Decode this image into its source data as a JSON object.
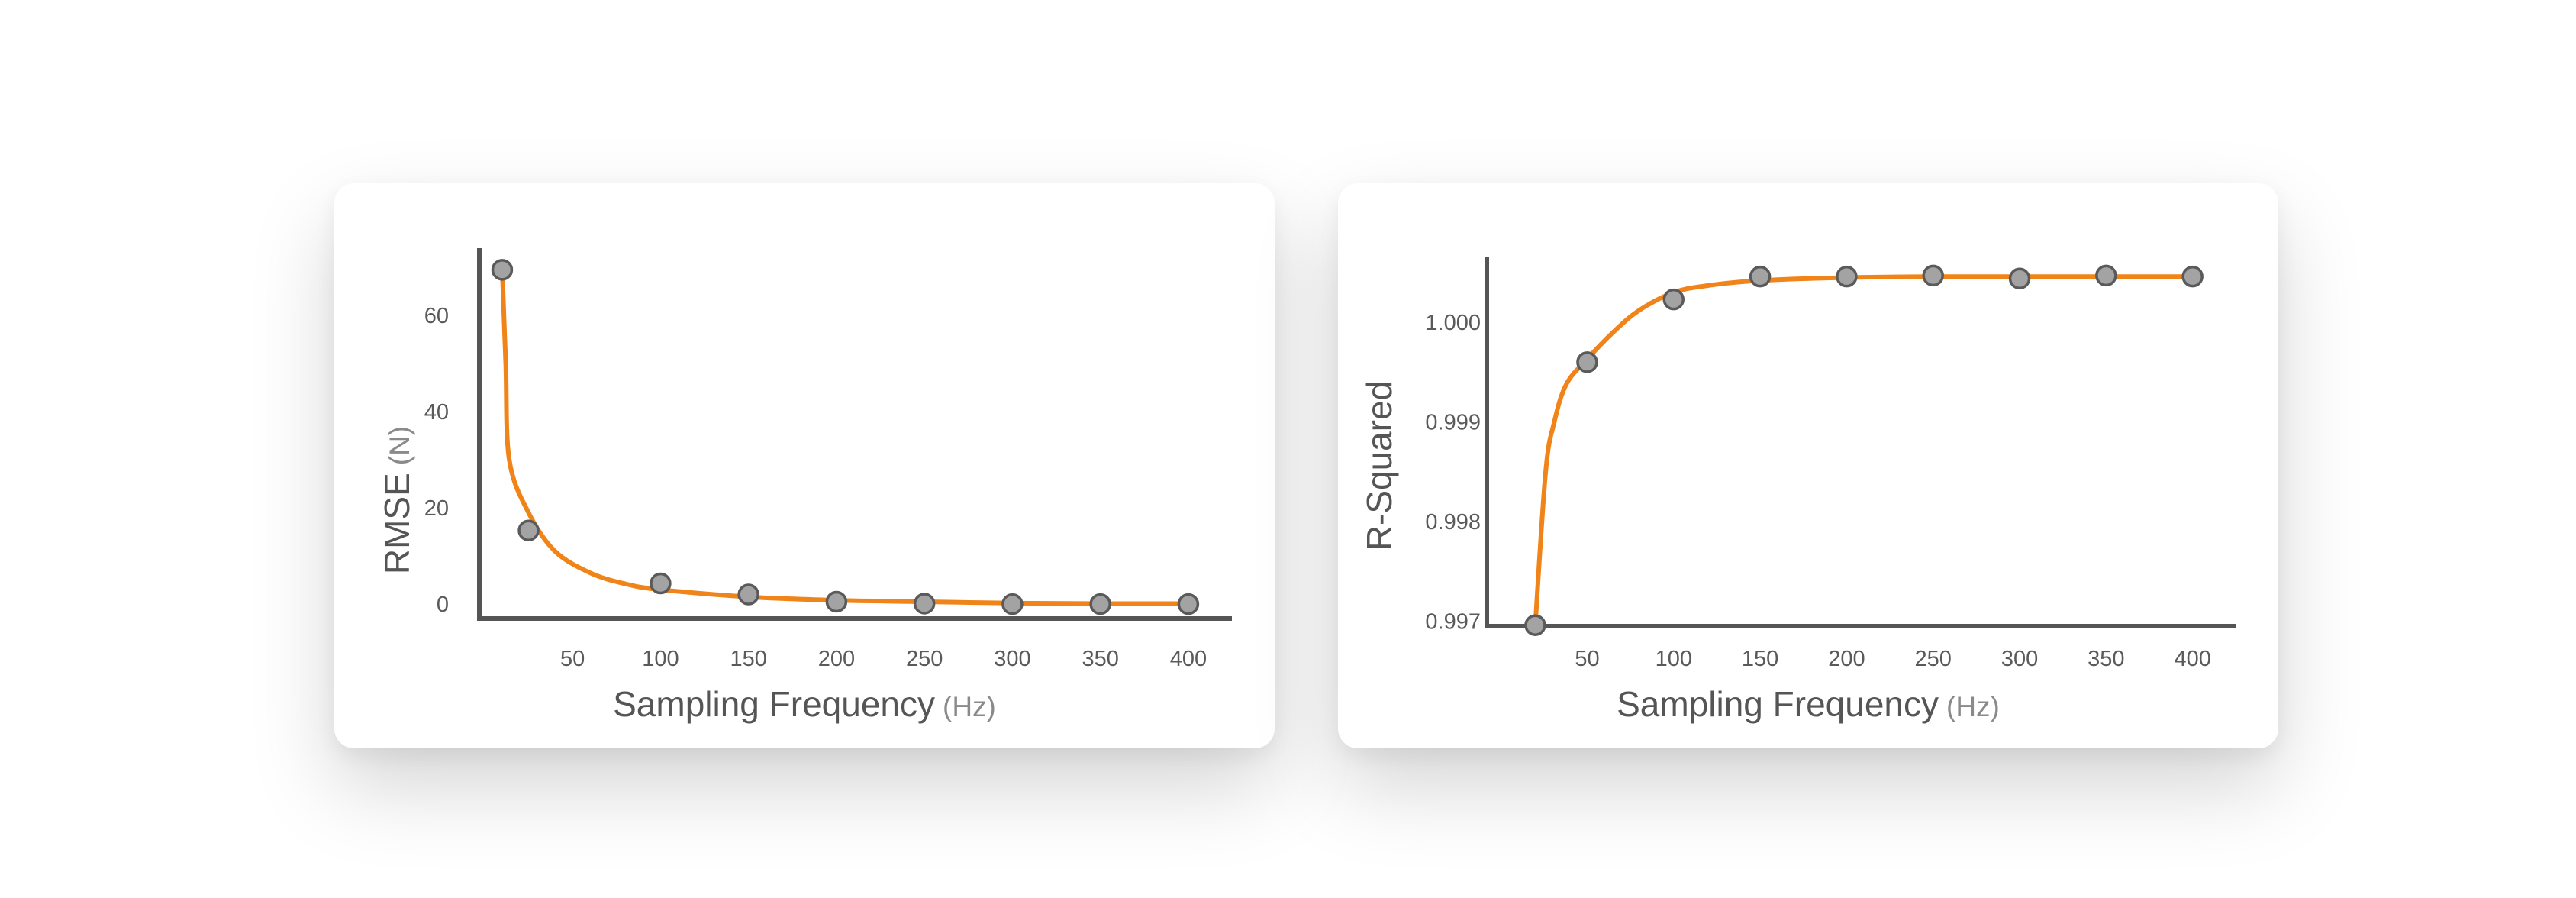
{
  "chart_data": [
    {
      "type": "scatter",
      "ylabel": "RMSE",
      "ylabel_unit": "(N)",
      "xlabel": "Sampling Frequency",
      "xlabel_unit": "(Hz)",
      "xticks": [
        "50",
        "100",
        "150",
        "200",
        "250",
        "300",
        "350",
        "400"
      ],
      "yticks": [
        "0",
        "20",
        "40",
        "60"
      ],
      "xlim": [
        -3,
        420
      ],
      "ylim": [
        -3,
        74
      ],
      "points": [
        {
          "x": 10,
          "y": 69.5
        },
        {
          "x": 25,
          "y": 15.3
        },
        {
          "x": 100,
          "y": 4.3
        },
        {
          "x": 150,
          "y": 2.0
        },
        {
          "x": 200,
          "y": 0.5
        },
        {
          "x": 250,
          "y": 0.1
        },
        {
          "x": 300,
          "y": 0.0
        },
        {
          "x": 350,
          "y": 0.0
        },
        {
          "x": 400,
          "y": 0.0
        }
      ],
      "fit_curve": [
        {
          "x": 10,
          "y": 69.5
        },
        {
          "x": 12,
          "y": 50
        },
        {
          "x": 14,
          "y": 30
        },
        {
          "x": 25,
          "y": 19
        },
        {
          "x": 40,
          "y": 11
        },
        {
          "x": 60,
          "y": 6.5
        },
        {
          "x": 80,
          "y": 4.2
        },
        {
          "x": 100,
          "y": 3.0
        },
        {
          "x": 150,
          "y": 1.5
        },
        {
          "x": 200,
          "y": 0.8
        },
        {
          "x": 250,
          "y": 0.5
        },
        {
          "x": 300,
          "y": 0.2
        },
        {
          "x": 350,
          "y": 0.1
        },
        {
          "x": 400,
          "y": 0.1
        }
      ],
      "grid": false,
      "legend": "none",
      "colors": {
        "curve": "#f08418",
        "marker": "#a3a3a3"
      }
    },
    {
      "type": "scatter",
      "ylabel": "R-Squared",
      "xlabel": "Sampling Frequency",
      "xlabel_unit": "(Hz)",
      "xticks": [
        "50",
        "100",
        "150",
        "200",
        "250",
        "300",
        "350",
        "400"
      ],
      "yticks": [
        "0.997",
        "0.998",
        "0.999",
        "1.000"
      ],
      "xlim": [
        -8,
        420
      ],
      "ylim": [
        0.99695,
        1.00063
      ],
      "points": [
        {
          "x": 20,
          "y": 0.99696
        },
        {
          "x": 50,
          "y": 0.9996
        },
        {
          "x": 100,
          "y": 1.00023
        },
        {
          "x": 150,
          "y": 1.00046
        },
        {
          "x": 200,
          "y": 1.00046
        },
        {
          "x": 250,
          "y": 1.00047
        },
        {
          "x": 300,
          "y": 1.00044
        },
        {
          "x": 350,
          "y": 1.00047
        },
        {
          "x": 400,
          "y": 1.00046
        }
      ],
      "fit_curve": [
        {
          "x": 20,
          "y": 0.99696
        },
        {
          "x": 26,
          "y": 0.9985
        },
        {
          "x": 31,
          "y": 0.999
        },
        {
          "x": 38,
          "y": 0.99938
        },
        {
          "x": 50,
          "y": 0.99963
        },
        {
          "x": 65,
          "y": 0.9999
        },
        {
          "x": 80,
          "y": 1.00012
        },
        {
          "x": 100,
          "y": 1.0003
        },
        {
          "x": 120,
          "y": 1.00037
        },
        {
          "x": 150,
          "y": 1.00042
        },
        {
          "x": 200,
          "y": 1.00045
        },
        {
          "x": 250,
          "y": 1.00046
        },
        {
          "x": 300,
          "y": 1.00046
        },
        {
          "x": 350,
          "y": 1.00046
        },
        {
          "x": 400,
          "y": 1.00046
        }
      ],
      "grid": false,
      "legend": "none",
      "colors": {
        "curve": "#f08418",
        "marker": "#a3a3a3"
      }
    }
  ]
}
